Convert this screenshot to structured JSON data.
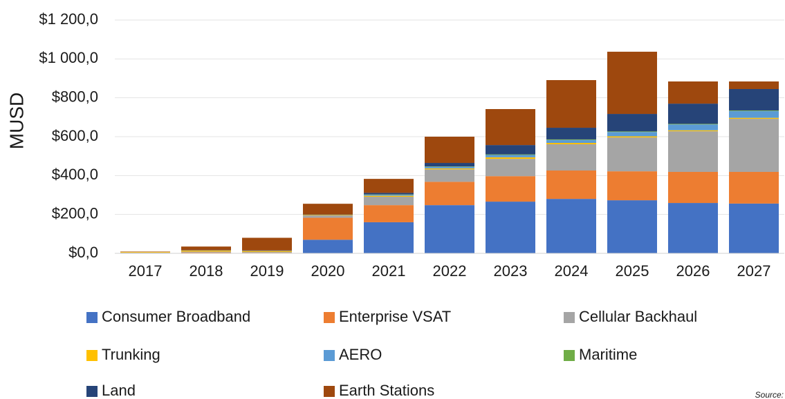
{
  "chart_data": {
    "type": "stacked_bar",
    "y_axis_label": "MUSD",
    "annotation": "Source:",
    "categories": [
      "2017",
      "2018",
      "2019",
      "2020",
      "2021",
      "2022",
      "2023",
      "2024",
      "2025",
      "2026",
      "2027"
    ],
    "series": [
      {
        "name": "Consumer Broadband",
        "color": "#4472c4",
        "values": [
          0,
          0,
          0,
          70,
          160,
          248,
          266,
          280,
          273,
          259,
          256
        ]
      },
      {
        "name": "Enterprise VSAT",
        "color": "#ed7d31",
        "values": [
          2,
          4,
          3,
          113,
          88,
          120,
          131,
          146,
          149,
          160,
          163
        ]
      },
      {
        "name": "Cellular Backhaul",
        "color": "#a5a5a5",
        "values": [
          2,
          5,
          4,
          12,
          43,
          64,
          89,
          135,
          174,
          209,
          273
        ]
      },
      {
        "name": "Trunking",
        "color": "#ffc000",
        "values": [
          3,
          6,
          5,
          3,
          5,
          5,
          8,
          7,
          6,
          5,
          5
        ]
      },
      {
        "name": "AERO",
        "color": "#5b9bd5",
        "values": [
          0,
          0,
          1,
          0,
          5,
          8,
          12,
          15,
          22,
          30,
          35
        ]
      },
      {
        "name": "Maritime",
        "color": "#70ad47",
        "values": [
          0,
          0,
          0,
          0,
          2,
          2,
          3,
          3,
          3,
          3,
          3
        ]
      },
      {
        "name": "Land",
        "color": "#264478",
        "values": [
          0,
          2,
          2,
          2,
          8,
          18,
          48,
          60,
          90,
          104,
          110
        ]
      },
      {
        "name": "Earth Stations",
        "color": "#9e480e",
        "values": [
          2,
          18,
          65,
          55,
          72,
          135,
          185,
          245,
          320,
          114,
          39
        ]
      }
    ],
    "ylim": [
      0,
      1200
    ],
    "yticks": [
      {
        "value": 0,
        "label": "$0,0"
      },
      {
        "value": 200,
        "label": "$200,0"
      },
      {
        "value": 400,
        "label": "$400,0"
      },
      {
        "value": 600,
        "label": "$600,0"
      },
      {
        "value": 800,
        "label": "$800,0"
      },
      {
        "value": 1000,
        "label": "$1 000,0"
      },
      {
        "value": 1200,
        "label": "$1 200,0"
      }
    ],
    "grid": true,
    "legend": "bottom"
  }
}
